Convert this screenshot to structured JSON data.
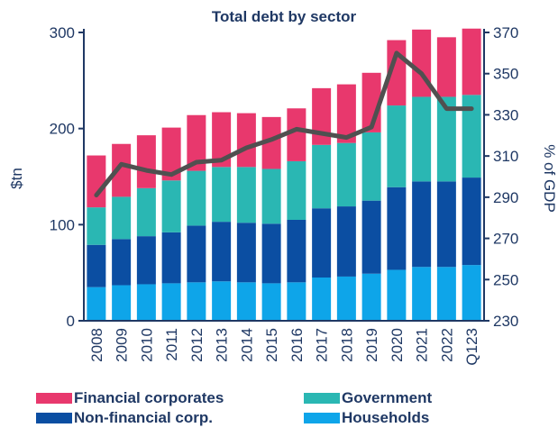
{
  "chart_data": {
    "type": "bar",
    "stacked": true,
    "title": "Total debt by sector",
    "xlabel": "",
    "ylabel": "$tn",
    "y2label": "% of GDP",
    "ylim": [
      0,
      300
    ],
    "y2lim": [
      230,
      370
    ],
    "yticks": [
      "0",
      "100",
      "200",
      "300"
    ],
    "y2ticks": [
      "230",
      "250",
      "270",
      "290",
      "310",
      "330",
      "350",
      "370"
    ],
    "categories": [
      "2008",
      "2009",
      "2010",
      "2011",
      "2012",
      "2013",
      "2014",
      "2015",
      "2016",
      "2017",
      "2018",
      "2019",
      "2020",
      "2021",
      "2022",
      "Q123"
    ],
    "series": [
      {
        "name": "Households",
        "color": "#0ea5e9",
        "values": [
          35,
          37,
          38,
          39,
          40,
          41,
          40,
          39,
          40,
          45,
          46,
          49,
          53,
          56,
          56,
          58
        ]
      },
      {
        "name": "Non-financial corp.",
        "color": "#0b4ea2",
        "values": [
          44,
          48,
          50,
          53,
          59,
          62,
          62,
          62,
          65,
          72,
          73,
          76,
          86,
          89,
          89,
          91
        ]
      },
      {
        "name": "Government",
        "color": "#2ab7b3",
        "values": [
          39,
          44,
          50,
          54,
          57,
          57,
          58,
          57,
          61,
          66,
          66,
          71,
          85,
          88,
          88,
          86
        ]
      },
      {
        "name": "Financial corporates",
        "color": "#e8386d",
        "values": [
          54,
          55,
          55,
          55,
          58,
          57,
          56,
          54,
          55,
          59,
          61,
          62,
          68,
          70,
          62,
          69
        ]
      }
    ],
    "line": {
      "name": "% of GDP",
      "color": "#505050",
      "axis": "right",
      "values": [
        291,
        306,
        303,
        301,
        307,
        308,
        314,
        318,
        323,
        321,
        319,
        324,
        360,
        350,
        333,
        333
      ]
    },
    "legend_position": "bottom",
    "grid": false
  }
}
